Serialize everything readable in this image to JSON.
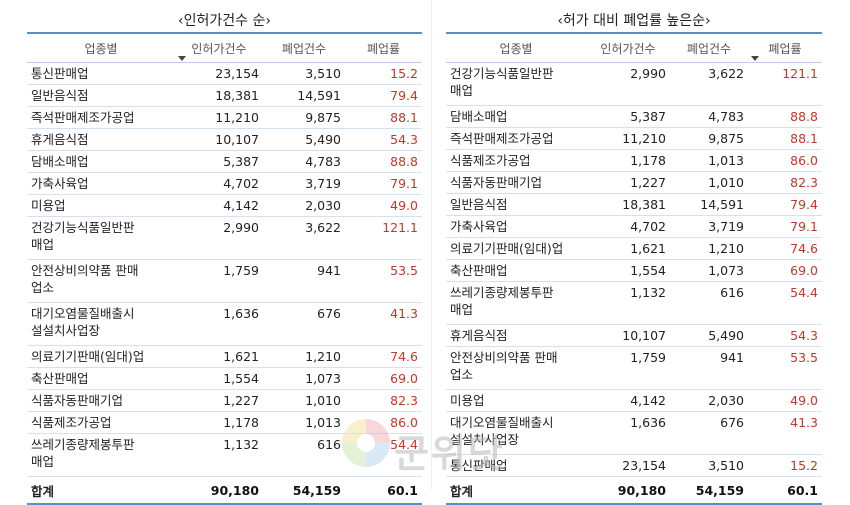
{
  "left": {
    "title": "‹인허가건수 순›",
    "headers": [
      "업종별",
      "인허가건수",
      "폐업건수",
      "폐업률"
    ],
    "rows": [
      {
        "name": "통신판매업",
        "permits": "23,154",
        "closures": "3,510",
        "rate": "15.2"
      },
      {
        "name": "일반음식점",
        "permits": "18,381",
        "closures": "14,591",
        "rate": "79.4"
      },
      {
        "name": "즉석판매제조가공업",
        "permits": "11,210",
        "closures": "9,875",
        "rate": "88.1"
      },
      {
        "name": "휴게음식점",
        "permits": "10,107",
        "closures": "5,490",
        "rate": "54.3"
      },
      {
        "name": "담배소매업",
        "permits": "5,387",
        "closures": "4,783",
        "rate": "88.8"
      },
      {
        "name": "가축사육업",
        "permits": "4,702",
        "closures": "3,719",
        "rate": "79.1"
      },
      {
        "name": "미용업",
        "permits": "4,142",
        "closures": "2,030",
        "rate": "49.0"
      },
      {
        "name": "건강기능식품일반판\n매업",
        "permits": "2,990",
        "closures": "3,622",
        "rate": "121.1"
      },
      {
        "name": "안전상비의약품 판매\n업소",
        "permits": "1,759",
        "closures": "941",
        "rate": "53.5"
      },
      {
        "name": "대기오염물질배출시\n설설치사업장",
        "permits": "1,636",
        "closures": "676",
        "rate": "41.3"
      },
      {
        "name": "의료기기판매(임대)업",
        "permits": "1,621",
        "closures": "1,210",
        "rate": "74.6"
      },
      {
        "name": "축산판매업",
        "permits": "1,554",
        "closures": "1,073",
        "rate": "69.0"
      },
      {
        "name": "식품자동판매기업",
        "permits": "1,227",
        "closures": "1,010",
        "rate": "82.3"
      },
      {
        "name": "식품제조가공업",
        "permits": "1,178",
        "closures": "1,013",
        "rate": "86.0"
      },
      {
        "name": "쓰레기종량제봉투판\n매업",
        "permits": "1,132",
        "closures": "616",
        "rate": "54.4"
      }
    ],
    "total": {
      "name": "합계",
      "permits": "90,180",
      "closures": "54,159",
      "rate": "60.1"
    }
  },
  "right": {
    "title": "‹허가 대비 폐업률 높은순›",
    "headers": [
      "업종별",
      "인허가건수",
      "폐업건수",
      "폐업률"
    ],
    "rows": [
      {
        "name": "건강기능식품일반판\n매업",
        "permits": "2,990",
        "closures": "3,622",
        "rate": "121.1"
      },
      {
        "name": "담배소매업",
        "permits": "5,387",
        "closures": "4,783",
        "rate": "88.8"
      },
      {
        "name": "즉석판매제조가공업",
        "permits": "11,210",
        "closures": "9,875",
        "rate": "88.1"
      },
      {
        "name": "식품제조가공업",
        "permits": "1,178",
        "closures": "1,013",
        "rate": "86.0"
      },
      {
        "name": "식품자동판매기업",
        "permits": "1,227",
        "closures": "1,010",
        "rate": "82.3"
      },
      {
        "name": "일반음식점",
        "permits": "18,381",
        "closures": "14,591",
        "rate": "79.4"
      },
      {
        "name": "가축사육업",
        "permits": "4,702",
        "closures": "3,719",
        "rate": "79.1"
      },
      {
        "name": "의료기기판매(임대)업",
        "permits": "1,621",
        "closures": "1,210",
        "rate": "74.6"
      },
      {
        "name": "축산판매업",
        "permits": "1,554",
        "closures": "1,073",
        "rate": "69.0"
      },
      {
        "name": "쓰레기종량제봉투판\n매업",
        "permits": "1,132",
        "closures": "616",
        "rate": "54.4"
      },
      {
        "name": "휴게음식점",
        "permits": "10,107",
        "closures": "5,490",
        "rate": "54.3"
      },
      {
        "name": "안전상비의약품 판매\n업소",
        "permits": "1,759",
        "closures": "941",
        "rate": "53.5"
      },
      {
        "name": "미용업",
        "permits": "4,142",
        "closures": "2,030",
        "rate": "49.0"
      },
      {
        "name": "대기오염물질배출시\n설설치사업장",
        "permits": "1,636",
        "closures": "676",
        "rate": "41.3"
      },
      {
        "name": "통신판매업",
        "permits": "23,154",
        "closures": "3,510",
        "rate": "15.2"
      }
    ],
    "total": {
      "name": "합계",
      "permits": "90,180",
      "closures": "54,159",
      "rate": "60.1"
    }
  },
  "watermark": {
    "text": "군위닷"
  },
  "colors": {
    "accent_border": "#5a8fc4",
    "rate_text": "#c0392b"
  }
}
